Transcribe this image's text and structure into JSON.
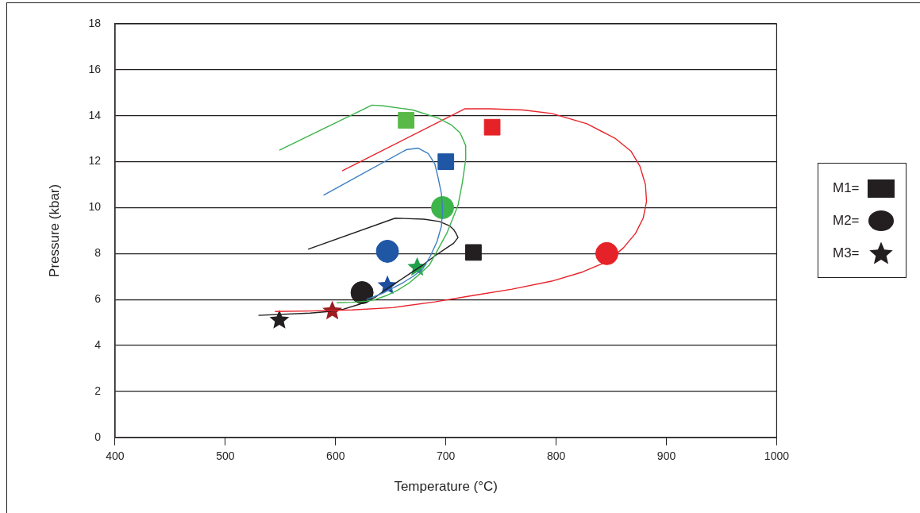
{
  "chart_data": {
    "type": "scatter",
    "xlabel": "Temperature (°C)",
    "ylabel": "Pressure (kbar)",
    "xlim": [
      400,
      1000
    ],
    "xticks": [
      400,
      500,
      600,
      700,
      800,
      900,
      1000
    ],
    "ylim": [
      0,
      18
    ],
    "yticks": [
      0,
      2,
      4,
      6,
      8,
      10,
      12,
      14,
      16,
      18
    ],
    "grid": "y",
    "legend": "right",
    "line_style": "solid",
    "series": [
      {
        "type": "line",
        "color": "#3cb44a",
        "x": [
          549,
          633,
          643,
          670,
          693,
          705,
          713,
          718,
          718,
          715,
          711,
          706,
          701,
          693,
          685,
          676,
          667,
          656,
          646,
          636,
          628,
          615,
          601
        ],
        "values": [
          12.5,
          14.46,
          14.43,
          14.25,
          13.9,
          13.6,
          13.25,
          12.7,
          12.1,
          11.1,
          10.1,
          9.5,
          8.9,
          8.2,
          7.5,
          7.1,
          6.73,
          6.4,
          6.17,
          6.0,
          5.93,
          5.88,
          5.86
        ]
      },
      {
        "type": "line",
        "color": "#e8232a",
        "x": [
          606,
          717,
          740,
          770,
          796,
          828,
          854,
          868,
          876,
          881,
          882,
          879,
          872,
          861,
          847,
          824,
          796,
          760,
          724,
          690,
          652,
          615,
          577,
          545
        ],
        "values": [
          11.6,
          14.3,
          14.3,
          14.25,
          14.1,
          13.65,
          13.0,
          12.45,
          11.8,
          11.0,
          10.27,
          9.55,
          8.88,
          8.25,
          7.67,
          7.2,
          6.8,
          6.45,
          6.17,
          5.9,
          5.65,
          5.55,
          5.5,
          5.48
        ]
      },
      {
        "type": "line",
        "color": "#3b7fc4",
        "x": [
          589,
          664,
          675,
          684,
          690,
          693,
          696,
          697,
          696,
          692,
          686,
          679,
          670,
          661,
          652,
          643,
          628
        ],
        "values": [
          10.54,
          12.52,
          12.59,
          12.35,
          11.9,
          11.3,
          10.6,
          9.92,
          9.2,
          8.53,
          7.9,
          7.32,
          7.0,
          6.73,
          6.5,
          6.28,
          6.0
        ]
      },
      {
        "type": "line",
        "color": "#231f20",
        "x": [
          575,
          654,
          680,
          694,
          703,
          707,
          709,
          711,
          707,
          701,
          690,
          679,
          668,
          657,
          646,
          636,
          622,
          607,
          592,
          577,
          530
        ],
        "values": [
          8.19,
          9.54,
          9.5,
          9.4,
          9.22,
          9.05,
          8.9,
          8.7,
          8.45,
          8.26,
          7.9,
          7.5,
          7.15,
          6.8,
          6.45,
          6.1,
          5.8,
          5.58,
          5.47,
          5.41,
          5.31
        ]
      },
      {
        "type": "scatter",
        "marker": "square",
        "color": "#58b947",
        "x": [
          664
        ],
        "values": [
          13.8
        ]
      },
      {
        "type": "scatter",
        "marker": "square",
        "color": "#1f57a5",
        "x": [
          700
        ],
        "values": [
          12.0
        ]
      },
      {
        "type": "scatter",
        "marker": "square",
        "color": "#e52227",
        "x": [
          742
        ],
        "values": [
          13.5
        ]
      },
      {
        "type": "scatter",
        "marker": "circle",
        "color": "#3db54a",
        "x": [
          697
        ],
        "values": [
          10.0
        ]
      },
      {
        "type": "scatter",
        "marker": "circle",
        "color": "#1f57a5",
        "x": [
          647
        ],
        "values": [
          8.1
        ]
      },
      {
        "type": "scatter",
        "marker": "circle",
        "color": "#e52227",
        "x": [
          846
        ],
        "values": [
          8.0
        ]
      },
      {
        "name": "M1=",
        "type": "scatter",
        "marker": "square",
        "color": "#231f20",
        "x": [
          725
        ],
        "values": [
          8.05
        ]
      },
      {
        "name": "M2=",
        "type": "scatter",
        "marker": "circle",
        "color": "#231f20",
        "x": [
          624
        ],
        "values": [
          6.3
        ]
      },
      {
        "type": "scatter",
        "marker": "star",
        "color": "#22a04b",
        "x": [
          674
        ],
        "values": [
          7.4
        ]
      },
      {
        "type": "scatter",
        "marker": "star",
        "color": "#1d4fa0",
        "x": [
          647
        ],
        "values": [
          6.6
        ]
      },
      {
        "type": "scatter",
        "marker": "star",
        "color": "#9b1c20",
        "x": [
          597
        ],
        "values": [
          5.5
        ]
      },
      {
        "name": "M3=",
        "type": "scatter",
        "marker": "star",
        "color": "#231f20",
        "x": [
          549
        ],
        "values": [
          5.1
        ]
      }
    ]
  }
}
